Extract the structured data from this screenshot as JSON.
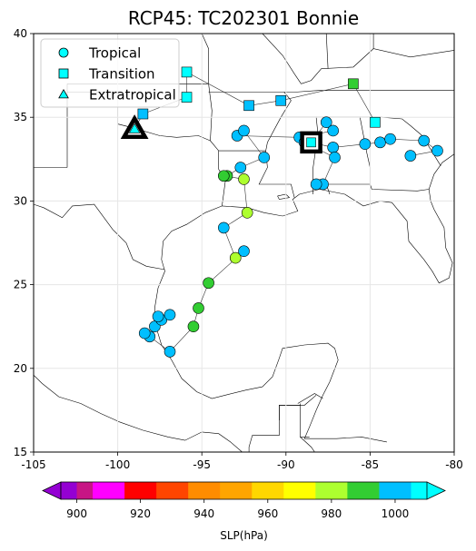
{
  "chart_data": {
    "type": "scatter",
    "title": "RCP45: TC202301 Bonnie",
    "x_ticks": [
      -105,
      -100,
      -95,
      -90,
      -85,
      -80
    ],
    "y_ticks": [
      15,
      20,
      25,
      30,
      35,
      40
    ],
    "xlim": [
      -105,
      -80
    ],
    "ylim": [
      15,
      40
    ],
    "grid": true,
    "legend": {
      "placement": "upper-left",
      "entries": [
        {
          "label": "Tropical",
          "marker": "circle",
          "color": "#00ffff"
        },
        {
          "label": "Transition",
          "marker": "square",
          "color": "#00ffff"
        },
        {
          "label": "Extratropical",
          "marker": "triangle",
          "color": "#00ffff"
        }
      ]
    },
    "colorbar": {
      "label": "SLP(hPa)",
      "tick_labels": [
        "900",
        "920",
        "940",
        "960",
        "980",
        "1000"
      ],
      "ticks": [
        900,
        920,
        940,
        960,
        980,
        1000
      ],
      "range": [
        895,
        1010
      ],
      "extend": "both",
      "under_color": "#9400d3",
      "over_color": "#00ffff",
      "bins": [
        {
          "from": 895,
          "to": 900,
          "color": "#9400d3"
        },
        {
          "from": 900,
          "to": 905,
          "color": "#c71585"
        },
        {
          "from": 905,
          "to": 915,
          "color": "#ff00ff"
        },
        {
          "from": 915,
          "to": 925,
          "color": "#ff0000"
        },
        {
          "from": 925,
          "to": 935,
          "color": "#ff4500"
        },
        {
          "from": 935,
          "to": 945,
          "color": "#ff8c00"
        },
        {
          "from": 945,
          "to": 955,
          "color": "#ffa500"
        },
        {
          "from": 955,
          "to": 965,
          "color": "#ffd700"
        },
        {
          "from": 965,
          "to": 975,
          "color": "#ffff00"
        },
        {
          "from": 975,
          "to": 985,
          "color": "#adff2f"
        },
        {
          "from": 985,
          "to": 995,
          "color": "#32cd32"
        },
        {
          "from": 995,
          "to": 1005,
          "color": "#00bfff"
        },
        {
          "from": 1005,
          "to": 1010,
          "color": "#00ffff"
        }
      ]
    },
    "tracks": [
      [
        {
          "lon": -99.0,
          "lat": 34.3,
          "type": "Extratropical",
          "slp": 1005,
          "highlight": "genesis"
        },
        {
          "lon": -98.5,
          "lat": 35.2,
          "type": "Transition",
          "slp": 1002
        },
        {
          "lon": -95.9,
          "lat": 36.2,
          "type": "Transition",
          "slp": 1005
        },
        {
          "lon": -95.9,
          "lat": 37.7,
          "type": "Transition",
          "slp": 1005
        },
        {
          "lon": -92.2,
          "lat": 35.7,
          "type": "Transition",
          "slp": 1002
        },
        {
          "lon": -90.3,
          "lat": 36.0,
          "type": "Transition",
          "slp": 1002
        },
        {
          "lon": -86.0,
          "lat": 37.0,
          "type": "Transition",
          "slp": 985
        },
        {
          "lon": -84.7,
          "lat": 34.7,
          "type": "Transition",
          "slp": 1005
        }
      ],
      [
        {
          "lon": -88.5,
          "lat": 33.5,
          "type": "Transition",
          "slp": 1005,
          "highlight": "lysis"
        },
        {
          "lon": -87.6,
          "lat": 34.7,
          "type": "Tropical",
          "slp": 1002
        },
        {
          "lon": -87.2,
          "lat": 34.2,
          "type": "Tropical",
          "slp": 1002
        },
        {
          "lon": -89.2,
          "lat": 33.8,
          "type": "Tropical",
          "slp": 1002
        },
        {
          "lon": -92.9,
          "lat": 33.9,
          "type": "Tropical",
          "slp": 1002
        },
        {
          "lon": -92.5,
          "lat": 34.2,
          "type": "Tropical",
          "slp": 1002
        },
        {
          "lon": -91.3,
          "lat": 32.6,
          "type": "Tropical",
          "slp": 1002
        },
        {
          "lon": -92.7,
          "lat": 32.0,
          "type": "Tropical",
          "slp": 1002
        },
        {
          "lon": -93.5,
          "lat": 31.5,
          "type": "Tropical",
          "slp": 990
        },
        {
          "lon": -93.7,
          "lat": 31.5,
          "type": "Tropical",
          "slp": 990
        },
        {
          "lon": -92.5,
          "lat": 31.3,
          "type": "Tropical",
          "slp": 980
        },
        {
          "lon": -92.3,
          "lat": 29.3,
          "type": "Tropical",
          "slp": 975
        },
        {
          "lon": -93.7,
          "lat": 28.4,
          "type": "Tropical",
          "slp": 1002
        },
        {
          "lon": -93.0,
          "lat": 26.6,
          "type": "Tropical",
          "slp": 980
        },
        {
          "lon": -92.5,
          "lat": 27.0,
          "type": "Tropical",
          "slp": 1002
        },
        {
          "lon": -94.6,
          "lat": 25.1,
          "type": "Tropical",
          "slp": 990
        },
        {
          "lon": -95.2,
          "lat": 23.6,
          "type": "Tropical",
          "slp": 990
        },
        {
          "lon": -95.5,
          "lat": 22.5,
          "type": "Tropical",
          "slp": 990
        },
        {
          "lon": -96.9,
          "lat": 21.0,
          "type": "Tropical",
          "slp": 1002
        },
        {
          "lon": -98.1,
          "lat": 21.9,
          "type": "Tropical",
          "slp": 1002
        },
        {
          "lon": -98.4,
          "lat": 22.1,
          "type": "Tropical",
          "slp": 1002
        },
        {
          "lon": -97.8,
          "lat": 22.5,
          "type": "Tropical",
          "slp": 1002
        },
        {
          "lon": -97.4,
          "lat": 22.9,
          "type": "Tropical",
          "slp": 1002
        },
        {
          "lon": -97.6,
          "lat": 23.1,
          "type": "Tropical",
          "slp": 1002
        },
        {
          "lon": -96.9,
          "lat": 23.2,
          "type": "Tropical",
          "slp": 1002
        }
      ],
      [
        {
          "lon": -88.5,
          "lat": 33.5,
          "type": "Transition",
          "slp": 1005
        },
        {
          "lon": -87.2,
          "lat": 33.2,
          "type": "Tropical",
          "slp": 1002
        },
        {
          "lon": -85.3,
          "lat": 33.4,
          "type": "Tropical",
          "slp": 1002
        },
        {
          "lon": -84.4,
          "lat": 33.5,
          "type": "Tropical",
          "slp": 1002
        },
        {
          "lon": -83.8,
          "lat": 33.7,
          "type": "Tropical",
          "slp": 1002
        },
        {
          "lon": -81.8,
          "lat": 33.6,
          "type": "Tropical",
          "slp": 1002
        },
        {
          "lon": -81.0,
          "lat": 33.0,
          "type": "Tropical",
          "slp": 1002
        },
        {
          "lon": -82.6,
          "lat": 32.7,
          "type": "Tropical",
          "slp": 1002
        }
      ],
      [
        {
          "lon": -88.9,
          "lat": 33.5,
          "type": "Tropical",
          "slp": 1002
        },
        {
          "lon": -87.1,
          "lat": 32.6,
          "type": "Tropical",
          "slp": 1002
        },
        {
          "lon": -87.8,
          "lat": 31.0,
          "type": "Tropical",
          "slp": 1002
        },
        {
          "lon": -88.2,
          "lat": 31.0,
          "type": "Tropical",
          "slp": 1002
        }
      ]
    ],
    "land_color": "#ffffff",
    "border_color": "#000000",
    "marker_edge_color": "#000000"
  }
}
